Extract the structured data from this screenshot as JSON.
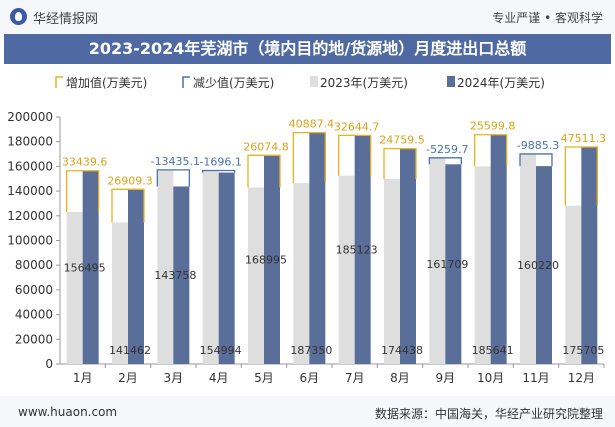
{
  "header": {
    "brand": "华经情报网",
    "slogan": "专业严谨 • 客观科学",
    "title": "2023-2024年芜湖市（境内目的地/货源地）月度进出口总额"
  },
  "footer": {
    "website": "www.huaon.com",
    "source": "数据来源：中国海关，华经产业研究院整理"
  },
  "colors": {
    "increase": "#e8b21f",
    "decrease": "#4a72b0",
    "y2023": "#dedede",
    "y2024": "#5a6e9a",
    "title_bg": "#4f6aa3"
  },
  "chart_data": {
    "type": "bar",
    "categories": [
      "1月",
      "2月",
      "3月",
      "4月",
      "5月",
      "6月",
      "7月",
      "8月",
      "9月",
      "10月",
      "11月",
      "12月"
    ],
    "series": [
      {
        "name": "2023年(万美元)",
        "values": [
          123056,
          114553,
          157193,
          156690,
          142920,
          146462,
          152478,
          149679,
          166969,
          160042,
          170105,
          128194
        ]
      },
      {
        "name": "2024年(万美元)",
        "values": [
          156495,
          141462,
          143758,
          154994,
          168995,
          187350,
          185123,
          174438,
          161709,
          185641,
          160220,
          175705
        ]
      }
    ],
    "difference": {
      "increase_name": "增加值(万美元)",
      "decrease_name": "减少值(万美元)",
      "labels": [
        "33439.6",
        "26909.3",
        "-13435.1",
        "-1696.1",
        "26074.8",
        "40887.4",
        "32644.7",
        "24759.5",
        "-5259.7",
        "25599.8",
        "-9885.3",
        "47511.3"
      ]
    },
    "bar_value_labels": [
      "156495",
      "141462",
      "143758",
      "154994",
      "168995",
      "187350",
      "185123",
      "174438",
      "161709",
      "185641",
      "160220",
      "175705"
    ],
    "y_ticks": [
      "0",
      "20000",
      "40000",
      "60000",
      "80000",
      "100000",
      "120000",
      "140000",
      "160000",
      "180000",
      "200000"
    ],
    "ylim": [
      0,
      200000
    ],
    "legend_position": "top-left",
    "grid": false
  }
}
